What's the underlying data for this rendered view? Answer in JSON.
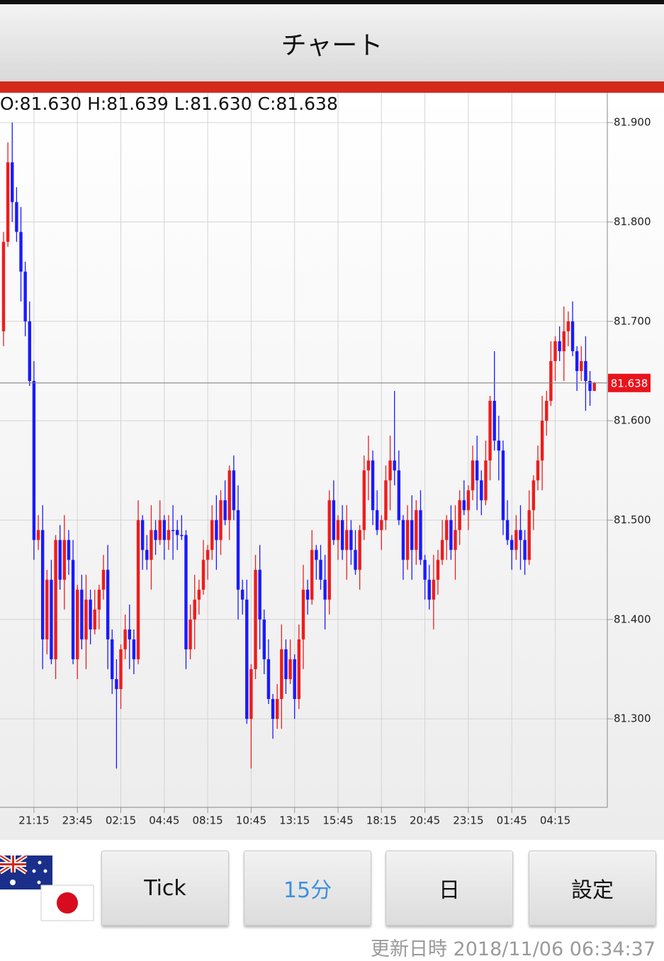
{
  "title": "チャート",
  "ohlc_label": "O:81.630 H:81.639 L:81.630 C:81.638",
  "chart_data": {
    "type": "candlestick",
    "categories": [
      null,
      null,
      null,
      null,
      null,
      null,
      null,
      "21:15",
      null,
      null,
      null,
      null,
      null,
      null,
      null,
      null,
      null,
      "23:45",
      null,
      null,
      null,
      null,
      null,
      null,
      null,
      null,
      null,
      "02:15",
      null,
      null,
      null,
      null,
      null,
      null,
      null,
      null,
      null,
      "04:45",
      null,
      null,
      null,
      null,
      null,
      null,
      null,
      null,
      null,
      "08:15",
      null,
      null,
      null,
      null,
      null,
      null,
      null,
      null,
      null,
      "10:45",
      null,
      null,
      null,
      null,
      null,
      null,
      null,
      null,
      null,
      "13:15",
      null,
      null,
      null,
      null,
      null,
      null,
      null,
      null,
      null,
      "15:45",
      null,
      null,
      null,
      null,
      null,
      null,
      null,
      null,
      null,
      "18:15",
      null,
      null,
      null,
      null,
      null,
      null,
      null,
      null,
      null,
      "20:45",
      null,
      null,
      null,
      null,
      null,
      null,
      null,
      null,
      null,
      "23:15",
      null,
      null,
      null,
      null,
      null,
      null,
      null,
      null,
      null,
      "01:45",
      null,
      null,
      null,
      null,
      null,
      null,
      null,
      null,
      null,
      "04:15",
      null,
      null,
      null,
      null,
      null,
      null,
      null,
      null,
      null
    ],
    "open": [
      81.69,
      81.78,
      81.86,
      81.82,
      81.79,
      81.75,
      81.7,
      81.64,
      81.48,
      81.49,
      81.38,
      81.44,
      81.36,
      81.48,
      81.44,
      81.48,
      81.46,
      81.36,
      81.43,
      81.38,
      81.42,
      81.39,
      81.41,
      81.43,
      81.45,
      81.38,
      81.34,
      81.33,
      81.37,
      81.39,
      81.38,
      81.36,
      81.5,
      81.47,
      81.46,
      81.49,
      81.48,
      81.5,
      81.48,
      81.49,
      81.49,
      81.485,
      81.485,
      81.37,
      81.4,
      81.42,
      81.43,
      81.46,
      81.47,
      81.5,
      81.48,
      81.52,
      81.5,
      81.55,
      81.51,
      81.43,
      81.42,
      81.3,
      81.35,
      81.45,
      81.4,
      81.36,
      81.32,
      81.3,
      81.32,
      81.37,
      81.34,
      81.36,
      81.32,
      81.38,
      81.43,
      81.42,
      81.47,
      81.46,
      81.44,
      81.42,
      81.52,
      81.48,
      81.5,
      81.47,
      81.49,
      81.47,
      81.45,
      81.49,
      81.55,
      81.56,
      81.51,
      81.49,
      81.5,
      81.54,
      81.56,
      81.55,
      81.5,
      81.46,
      81.5,
      81.47,
      81.51,
      81.46,
      81.44,
      81.42,
      81.44,
      81.46,
      81.48,
      81.5,
      81.47,
      81.49,
      81.52,
      81.51,
      81.53,
      81.56,
      81.54,
      81.52,
      81.56,
      81.62,
      81.58,
      81.57,
      81.5,
      81.48,
      81.47,
      81.49,
      81.48,
      81.46,
      81.51,
      81.54,
      81.56,
      81.6,
      81.62,
      81.66,
      81.68,
      81.67,
      81.69,
      81.7,
      81.67,
      81.65,
      81.66,
      81.64,
      81.63
    ],
    "high": [
      81.79,
      81.88,
      81.9,
      81.835,
      81.815,
      81.76,
      81.72,
      81.66,
      81.505,
      81.515,
      81.45,
      81.46,
      81.485,
      81.495,
      81.505,
      81.49,
      81.48,
      81.435,
      81.445,
      81.445,
      81.43,
      81.43,
      81.435,
      81.465,
      81.475,
      81.39,
      81.36,
      81.375,
      81.405,
      81.415,
      81.39,
      81.52,
      81.505,
      81.485,
      81.515,
      81.5,
      81.52,
      81.505,
      81.505,
      81.515,
      81.5,
      81.505,
      81.49,
      81.415,
      81.445,
      81.44,
      81.48,
      81.475,
      81.515,
      81.525,
      81.53,
      81.54,
      81.555,
      81.565,
      81.535,
      81.44,
      81.44,
      81.355,
      81.465,
      81.475,
      81.41,
      81.38,
      81.325,
      81.335,
      81.395,
      81.38,
      81.38,
      81.365,
      81.395,
      81.455,
      81.44,
      81.49,
      81.475,
      81.475,
      81.465,
      81.53,
      81.54,
      81.505,
      81.515,
      81.515,
      81.5,
      81.49,
      81.495,
      81.565,
      81.585,
      81.57,
      81.53,
      81.505,
      81.555,
      81.585,
      81.63,
      81.57,
      81.505,
      81.515,
      81.525,
      81.52,
      81.53,
      81.465,
      81.455,
      81.465,
      81.47,
      81.5,
      81.505,
      81.515,
      81.515,
      81.53,
      81.54,
      81.535,
      81.575,
      81.585,
      81.55,
      81.58,
      81.625,
      81.67,
      81.605,
      81.58,
      81.52,
      81.485,
      81.505,
      81.515,
      81.49,
      81.53,
      81.545,
      81.575,
      81.625,
      81.63,
      81.68,
      81.685,
      81.695,
      81.715,
      81.71,
      81.72,
      81.675,
      81.675,
      81.685,
      81.65,
      81.639
    ],
    "low": [
      81.675,
      81.775,
      81.8,
      81.78,
      81.72,
      81.685,
      81.635,
      81.46,
      81.47,
      81.35,
      81.365,
      81.355,
      81.34,
      81.43,
      81.41,
      81.445,
      81.355,
      81.34,
      81.37,
      81.35,
      81.375,
      81.385,
      81.39,
      81.42,
      81.35,
      81.325,
      81.25,
      81.31,
      81.36,
      81.35,
      81.345,
      81.355,
      81.45,
      81.45,
      81.43,
      81.465,
      81.475,
      81.46,
      81.47,
      81.46,
      81.47,
      81.48,
      81.35,
      81.36,
      81.37,
      81.405,
      81.425,
      81.44,
      81.46,
      81.45,
      81.465,
      81.495,
      81.48,
      81.5,
      81.4,
      81.405,
      81.295,
      81.25,
      81.34,
      81.37,
      81.345,
      81.315,
      81.28,
      81.29,
      81.29,
      81.325,
      81.335,
      81.3,
      81.31,
      81.35,
      81.405,
      81.415,
      81.44,
      81.43,
      81.39,
      81.405,
      81.475,
      81.46,
      81.46,
      81.44,
      81.455,
      81.445,
      81.43,
      81.48,
      81.52,
      81.495,
      81.485,
      81.47,
      81.49,
      81.51,
      81.535,
      81.495,
      81.44,
      81.45,
      81.44,
      81.455,
      81.455,
      81.42,
      81.41,
      81.39,
      81.425,
      81.455,
      81.46,
      81.46,
      81.44,
      81.475,
      81.505,
      81.49,
      81.52,
      81.51,
      81.505,
      81.515,
      81.54,
      81.57,
      81.54,
      81.485,
      81.475,
      81.45,
      81.46,
      81.45,
      81.445,
      81.455,
      81.49,
      81.53,
      81.53,
      81.585,
      81.615,
      81.64,
      81.66,
      81.64,
      81.675,
      81.665,
      81.63,
      81.64,
      81.61,
      81.615,
      81.63
    ],
    "close": [
      81.78,
      81.86,
      81.82,
      81.79,
      81.75,
      81.7,
      81.64,
      81.48,
      81.49,
      81.38,
      81.44,
      81.36,
      81.48,
      81.44,
      81.48,
      81.46,
      81.36,
      81.43,
      81.38,
      81.42,
      81.39,
      81.41,
      81.43,
      81.45,
      81.38,
      81.34,
      81.33,
      81.37,
      81.39,
      81.38,
      81.36,
      81.5,
      81.47,
      81.46,
      81.49,
      81.48,
      81.5,
      81.48,
      81.49,
      81.49,
      81.485,
      81.485,
      81.37,
      81.4,
      81.42,
      81.43,
      81.46,
      81.47,
      81.5,
      81.48,
      81.52,
      81.5,
      81.55,
      81.51,
      81.43,
      81.42,
      81.3,
      81.35,
      81.45,
      81.4,
      81.36,
      81.32,
      81.3,
      81.32,
      81.37,
      81.34,
      81.36,
      81.32,
      81.38,
      81.43,
      81.42,
      81.47,
      81.46,
      81.44,
      81.42,
      81.52,
      81.48,
      81.5,
      81.47,
      81.49,
      81.47,
      81.45,
      81.49,
      81.55,
      81.56,
      81.51,
      81.49,
      81.5,
      81.54,
      81.56,
      81.55,
      81.5,
      81.46,
      81.5,
      81.47,
      81.51,
      81.46,
      81.44,
      81.42,
      81.44,
      81.46,
      81.48,
      81.5,
      81.47,
      81.49,
      81.52,
      81.51,
      81.53,
      81.56,
      81.54,
      81.52,
      81.56,
      81.62,
      81.58,
      81.57,
      81.5,
      81.48,
      81.47,
      81.49,
      81.48,
      81.46,
      81.51,
      81.54,
      81.56,
      81.6,
      81.62,
      81.66,
      81.68,
      81.67,
      81.69,
      81.7,
      81.67,
      81.65,
      81.66,
      81.64,
      81.63,
      81.638
    ],
    "up_color": "#ee1c1c",
    "down_color": "#1a1aff",
    "ylim": [
      81.211,
      81.93
    ],
    "yticks": [
      {
        "value": 81.3,
        "label": "81.300"
      },
      {
        "value": 81.4,
        "label": "81.400"
      },
      {
        "value": 81.5,
        "label": "81.500"
      },
      {
        "value": 81.6,
        "label": "81.600"
      },
      {
        "value": 81.7,
        "label": "81.700"
      },
      {
        "value": 81.8,
        "label": "81.800"
      },
      {
        "value": 81.9,
        "label": "81.900"
      }
    ],
    "grid": true,
    "last_price": 81.638
  },
  "buttons": [
    "Tick",
    "15分",
    "日",
    "設定"
  ],
  "selected_button": 1,
  "footer": "更新日時 2018/11/06 06:34:37"
}
